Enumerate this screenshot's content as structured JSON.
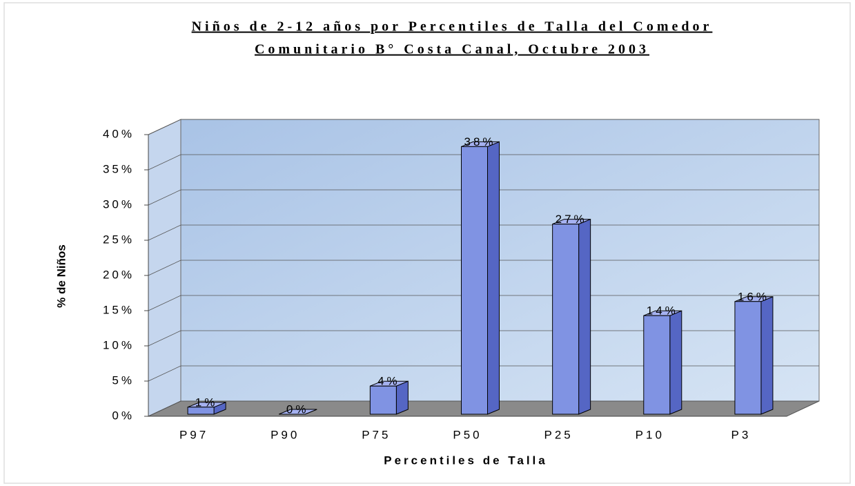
{
  "chart_data": {
    "type": "bar",
    "title": [
      "Niños de 2-12 años por Percentiles de Talla del Comedor",
      "Comunitario B° Costa Canal, Octubre 2003"
    ],
    "x_label": "Percentiles de Talla",
    "y_label": "% de Niños",
    "categories": [
      "P97",
      "P90",
      "P75",
      "P50",
      "P25",
      "P10",
      "P3"
    ],
    "values": [
      1,
      0,
      4,
      38,
      27,
      14,
      16
    ],
    "value_labels": [
      "1%",
      "0%",
      "4%",
      "38%",
      "27%",
      "14%",
      "16%"
    ],
    "color": "#8093e3",
    "ylim": [
      0,
      40
    ],
    "yticks": [
      {
        "value": 0,
        "label": "0%"
      },
      {
        "value": 5,
        "label": "5%"
      },
      {
        "value": 10,
        "label": "10%"
      },
      {
        "value": 15,
        "label": "15%"
      },
      {
        "value": 20,
        "label": "20%"
      },
      {
        "value": 25,
        "label": "25%"
      },
      {
        "value": 30,
        "label": "30%"
      },
      {
        "value": 35,
        "label": "35%"
      },
      {
        "value": 40,
        "label": "40%"
      }
    ],
    "grid": true
  }
}
